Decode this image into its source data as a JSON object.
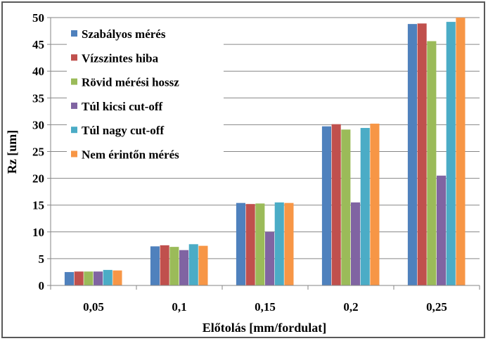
{
  "chart_data": {
    "type": "bar",
    "title": "",
    "xlabel": "Előtolás [mm/fordulat]",
    "ylabel": "Rz [um]",
    "ylim": [
      0,
      50
    ],
    "ytick_step": 5,
    "grid": true,
    "legend_position": "top-left",
    "categories": [
      "0,05",
      "0,1",
      "0,15",
      "0,2",
      "0,25"
    ],
    "series": [
      {
        "name": "Szabályos mérés",
        "color": "#4F81BD",
        "values": [
          2.5,
          7.3,
          15.4,
          29.7,
          48.8
        ]
      },
      {
        "name": "Vízszintes hiba",
        "color": "#C0504D",
        "values": [
          2.6,
          7.5,
          15.2,
          30.1,
          48.9
        ]
      },
      {
        "name": "Rövid mérési hossz",
        "color": "#9BBB59",
        "values": [
          2.6,
          7.2,
          15.3,
          29.1,
          45.6
        ]
      },
      {
        "name": "Túl kicsi cut-off",
        "color": "#8064A2",
        "values": [
          2.6,
          6.6,
          10.0,
          15.5,
          20.5
        ]
      },
      {
        "name": "Túl nagy cut-off",
        "color": "#4BACC6",
        "values": [
          2.9,
          7.7,
          15.5,
          29.4,
          49.2
        ]
      },
      {
        "name": "Nem érintőn mérés",
        "color": "#F79646",
        "values": [
          2.8,
          7.4,
          15.4,
          30.2,
          50.0
        ]
      }
    ]
  }
}
